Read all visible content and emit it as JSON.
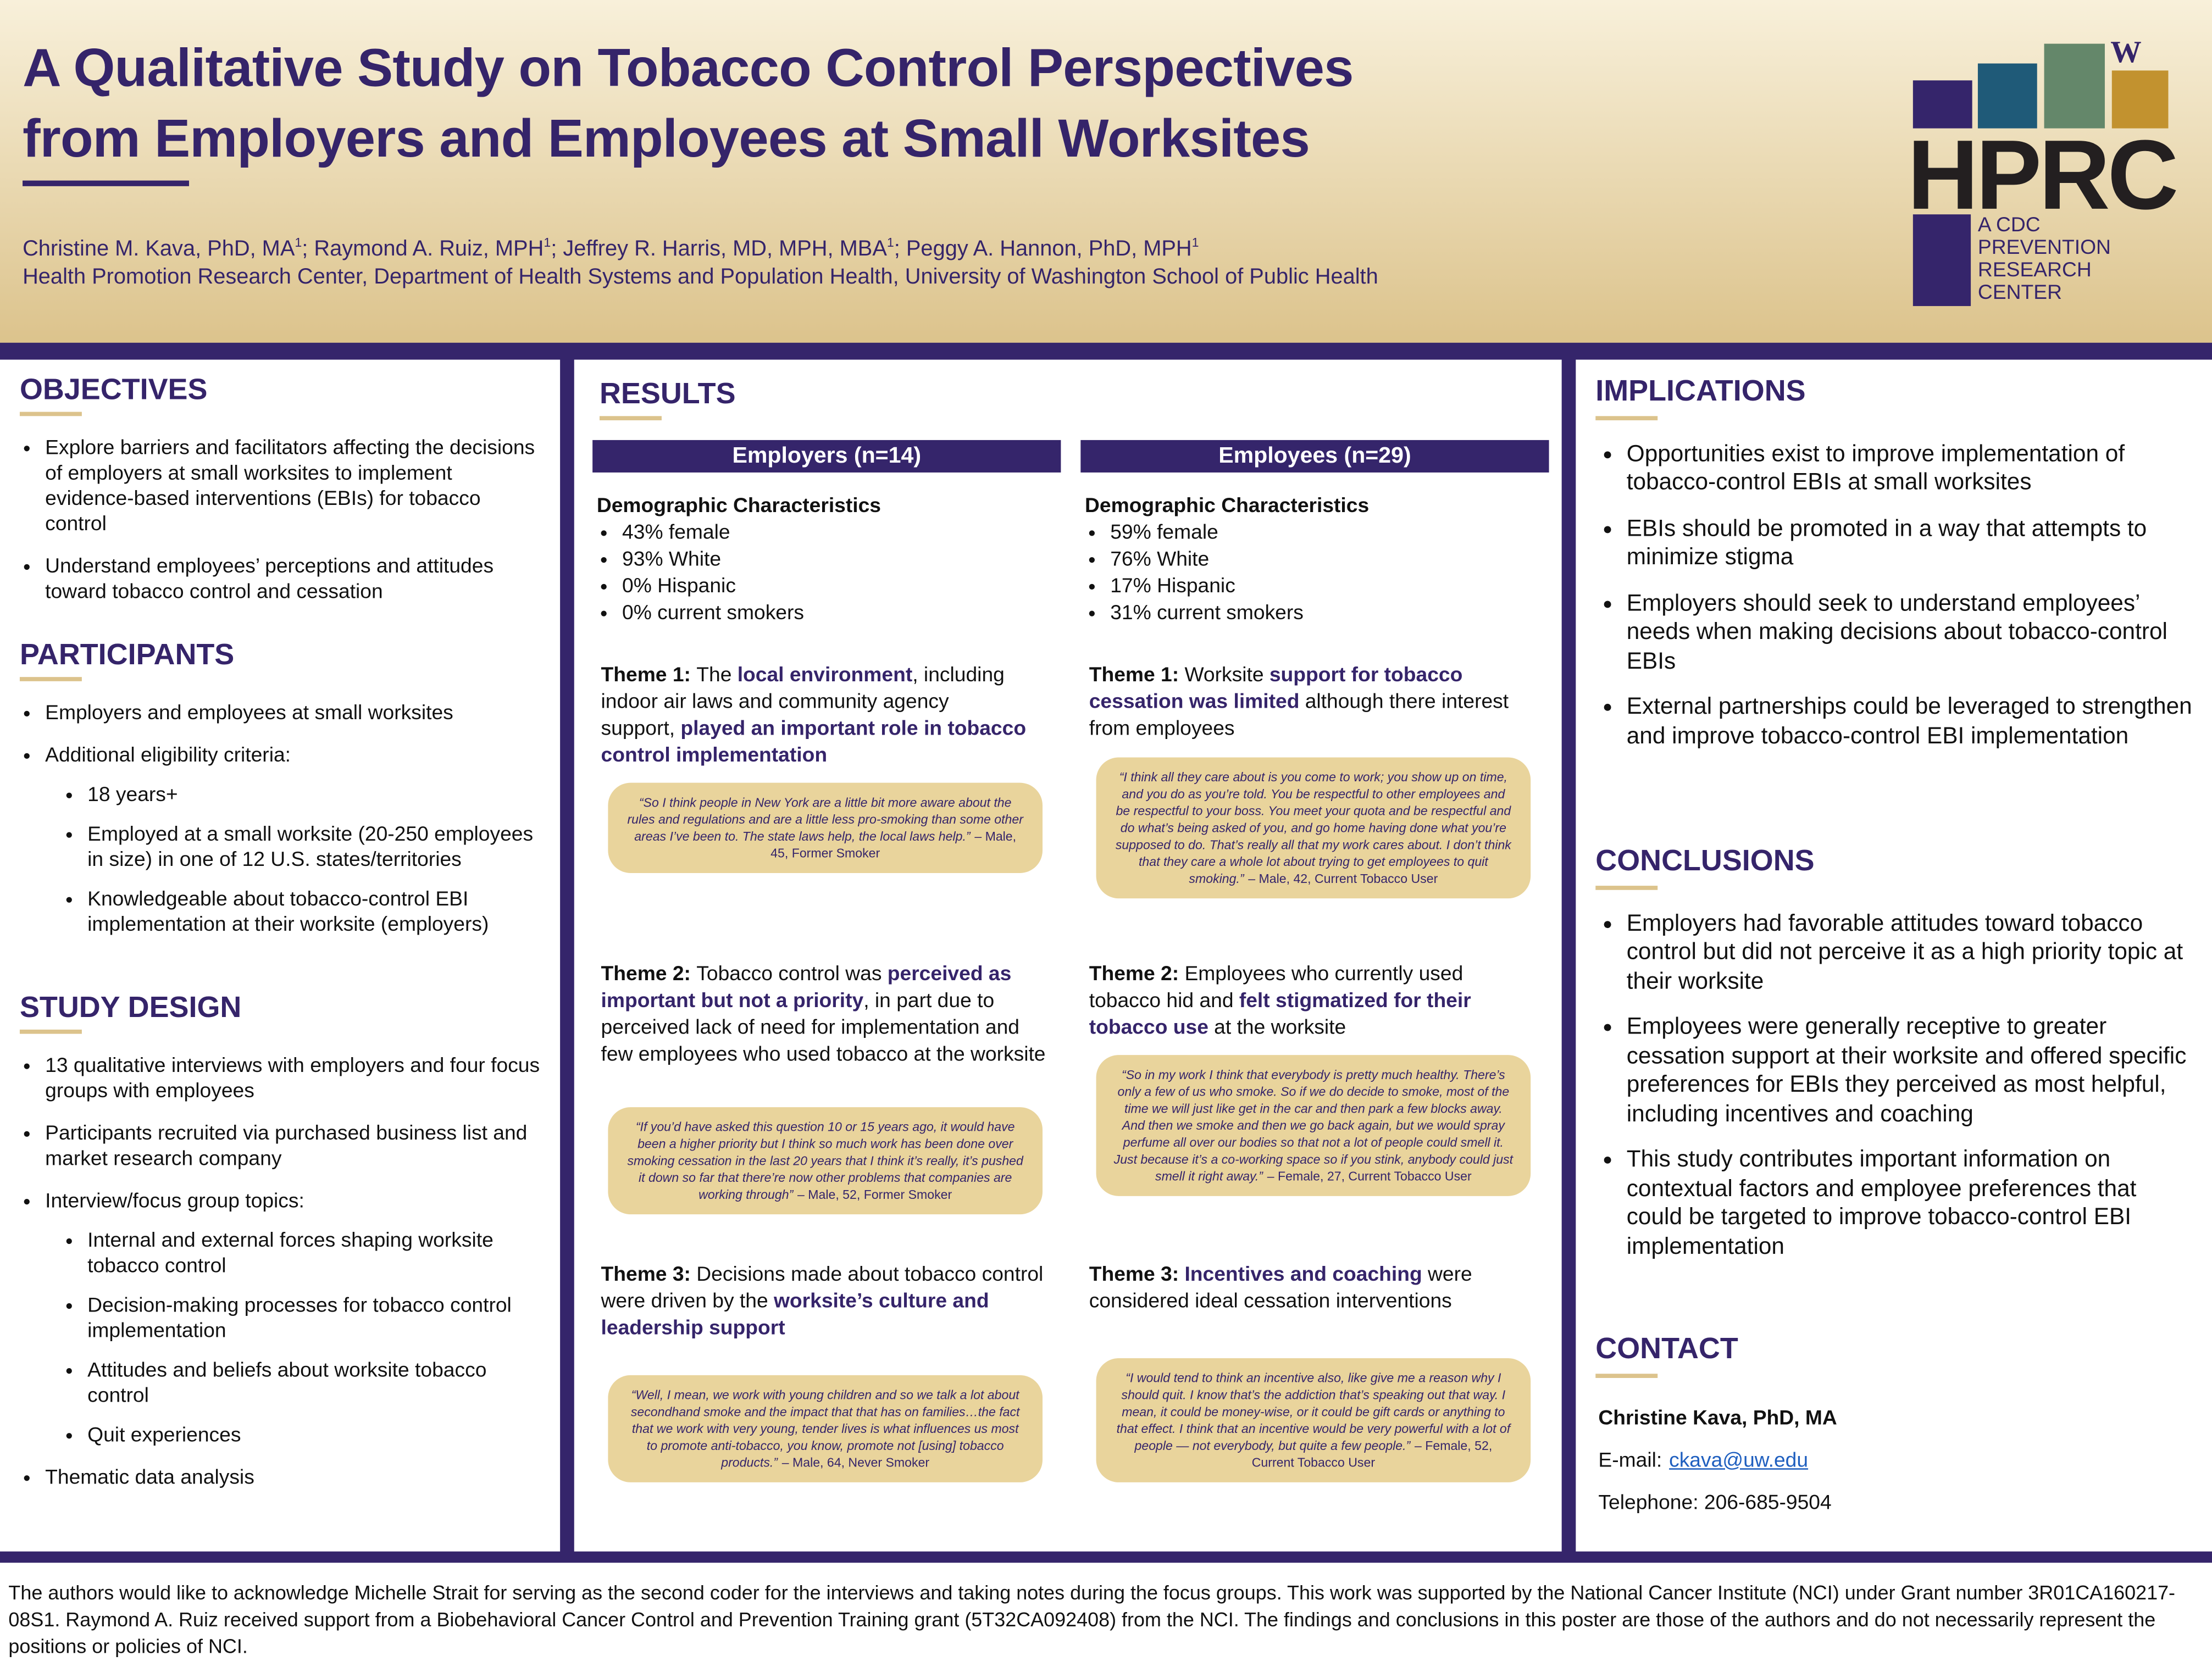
{
  "header": {
    "title_lines": [
      "A Qualitative Study on Tobacco Control Perspectives",
      "from Employers and Employees at Small Worksites"
    ],
    "authors": [
      {
        "name": "Christine M. Kava, PhD, MA",
        "sup": "1",
        "separator": "; "
      },
      {
        "name": "Raymond A. Ruiz, MPH",
        "sup": "1",
        "separator": "; "
      },
      {
        "name": "Jeffrey R. Harris, MD, MPH, MBA",
        "sup": "1",
        "separator": "; "
      },
      {
        "name": "Peggy A. Hannon, PhD, MPH",
        "sup": "1"
      }
    ],
    "affiliation": "Health Promotion Research Center, Department of Health Systems and Population Health, University of Washington School of Public Health",
    "logo": {
      "mark": "W",
      "letters": "HPRC",
      "sub_lines": [
        "A CDC",
        "PREVENTION",
        "RESEARCH",
        "CENTER"
      ]
    }
  },
  "objectives": {
    "heading": "OBJECTIVES",
    "items": [
      {
        "text": "Explore barriers and facilitators affecting the decisions of employers at small worksites to implement evidence-based interventions (EBIs) for tobacco control"
      },
      {
        "text": "Understand employees’ perceptions and attitudes toward tobacco control and cessation"
      }
    ]
  },
  "participants": {
    "heading": "PARTICIPANTS",
    "items": [
      {
        "text": "Employers and employees at small worksites"
      },
      {
        "text": "Additional eligibility criteria:",
        "subitems": [
          "18 years+",
          "Employed at a small worksite (20-250 employees in size) in one of 12 U.S. states/territories",
          "Knowledgeable about tobacco-control EBI implementation at their worksite (employers)"
        ]
      }
    ]
  },
  "study_design": {
    "heading": "STUDY DESIGN",
    "items": [
      {
        "text": "13 qualitative interviews with employers and four focus groups with employees"
      },
      {
        "text": "Participants recruited via purchased business list and market research company"
      },
      {
        "text": "Interview/focus group topics:",
        "subitems": [
          "Internal and external forces shaping worksite tobacco control",
          "Decision-making processes for tobacco control implementation",
          "Attitudes and beliefs about worksite tobacco control",
          "Quit experiences"
        ]
      },
      {
        "text": "Thematic data analysis"
      }
    ]
  },
  "results": {
    "heading": "RESULTS",
    "columns": [
      {
        "header": "Employers (n=14)",
        "demographics_title": "Demographic Characteristics",
        "demographics": [
          "43% female",
          "93% White",
          "0% Hispanic",
          "0% current smokers"
        ],
        "themes": [
          {
            "label": "Theme 1:",
            "parts": [
              {
                "text": "The"
              },
              {
                "bold": "local environment"
              },
              {
                "text": ", including indoor air laws and community agency support,"
              },
              {
                "bold": "played an important role in tobacco control implementation"
              }
            ],
            "quote": "“So I think people in New York are a little bit more aware about the rules and regulations and are a little less pro-smoking than some other areas I’ve been to. The state laws help, the local laws help.”",
            "attribution": "– Male, 45, Former Smoker"
          },
          {
            "label": "Theme 2:",
            "parts": [
              {
                "text": "Tobacco control was"
              },
              {
                "bold": "perceived as important but not a priority"
              },
              {
                "text": ", in part due to perceived lack of need for implementation and few employees who used tobacco at the worksite"
              }
            ],
            "quote": "“If you’d have asked this question 10 or 15 years ago, it would have been a higher priority but I think so much work has been done over smoking cessation in the last 20 years that I think it’s really, it’s pushed it down so far that there’re now other problems that companies are working through”",
            "attribution": "– Male, 52, Former Smoker"
          },
          {
            "label": "Theme 3:",
            "parts": [
              {
                "text": "Decisions made about tobacco control were driven by the"
              },
              {
                "bold": "worksite’s culture and leadership support"
              }
            ],
            "quote": "“Well, I mean, we work with young children and so we talk a lot about secondhand smoke and the impact that that has on families…the fact that we work with very young, tender lives is what influences us most to promote anti-tobacco, you know, promote not [using] tobacco products.”",
            "attribution": "– Male, 64, Never Smoker"
          }
        ]
      },
      {
        "header": "Employees (n=29)",
        "demographics_title": "Demographic Characteristics",
        "demographics": [
          "59% female",
          "76% White",
          "17% Hispanic",
          "31% current smokers"
        ],
        "themes": [
          {
            "label": "Theme 1:",
            "parts": [
              {
                "text": "Worksite"
              },
              {
                "bold": "support for tobacco cessation was limited"
              },
              {
                "text": "although there interest from employees"
              }
            ],
            "quote": "“I think all they care about is you come to work; you show up on time, and you do as you’re told. You be respectful to other employees and be respectful to your boss. You meet your quota and be respectful and do what’s being asked of you, and go home having done what you’re supposed to do. That’s really all that my work cares about. I don’t think that they care a whole lot about trying to get employees to quit smoking.”",
            "attribution": "– Male, 42, Current Tobacco User"
          },
          {
            "label": "Theme 2:",
            "parts": [
              {
                "text": "Employees who currently used tobacco hid and"
              },
              {
                "bold": "felt stigmatized for their tobacco use"
              },
              {
                "text": "at the worksite"
              }
            ],
            "quote": "“So in my work I think that everybody is pretty much healthy. There’s only a few of us who smoke. So if we do decide to smoke, most of the time we will just like get in the car and then park a few blocks away. And then we smoke and then we go back again, but we would spray perfume all over our bodies so that not a lot of people could smell it. Just because it’s a co-working space so if you stink, anybody could just smell it right away.”",
            "attribution": "– Female, 27, Current Tobacco User"
          },
          {
            "label": "Theme 3:",
            "parts": [
              {
                "bold": "Incentives and coaching"
              },
              {
                "text": "were considered ideal cessation interventions"
              }
            ],
            "quote": "“I would tend to think an incentive also, like give me a reason why I should quit. I know that’s the addiction that’s speaking out that way. I mean, it could be money-wise, or it could be gift cards or anything to that effect. I think that an incentive would be very powerful with a lot of people — not everybody, but quite a few people.”",
            "attribution": "– Female, 52, Current Tobacco User"
          }
        ]
      }
    ]
  },
  "implications": {
    "heading": "IMPLICATIONS",
    "items": [
      "Opportunities exist to improve implementation of tobacco-control EBIs at small worksites",
      "EBIs should be promoted in a way that attempts to minimize stigma",
      "Employers should seek to understand employees’ needs when making decisions about tobacco-control EBIs",
      "External partnerships could be leveraged to strengthen and improve tobacco-control EBI implementation"
    ]
  },
  "conclusions": {
    "heading": "CONCLUSIONS",
    "items": [
      "Employers had favorable attitudes toward tobacco control but did not perceive it as a high priority topic at their worksite",
      "Employees were generally receptive to greater cessation support at their worksite and offered specific preferences for EBIs they perceived as most helpful, including incentives and coaching",
      "This study contributes important information on contextual factors and employee preferences that could be targeted to improve tobacco-control EBI implementation"
    ]
  },
  "contact": {
    "heading": "CONTACT",
    "name": "Christine Kava, PhD, MA",
    "email_label": "E-mail:",
    "email": "ckava@uw.edu",
    "phone": "Telephone: 206-685-9504"
  },
  "footer": {
    "text": "The authors would like to acknowledge Michelle Strait for serving as the second coder for the interviews and taking notes during the focus groups. This work was supported by the National Cancer Institute (NCI) under Grant number 3R01CA160217-08S1. Raymond A. Ruiz received support from a Biobehavioral Cancer Control and Prevention Training grant (5T32CA092408) from the NCI. The findings and conclusions in this poster are those of the authors and do not necessarily represent the positions or policies of NCI."
  }
}
